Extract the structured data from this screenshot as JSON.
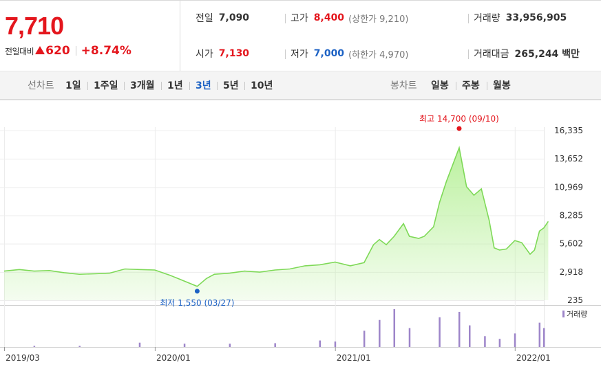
{
  "quote": {
    "price": "7,710",
    "change_label": "전일대비",
    "change_value": "620",
    "change_pct": "+8.74%",
    "prev_close_label": "전일",
    "prev_close": "7,090",
    "open_label": "시가",
    "open": "7,130",
    "high_label": "고가",
    "high": "8,400",
    "upper_limit": "(상한가 9,210)",
    "low_label": "저가",
    "low": "7,000",
    "lower_limit": "(하한가 4,970)",
    "volume_label": "거래량",
    "volume": "33,956,905",
    "amount_label": "거래대금",
    "amount": "265,244 백만",
    "colors": {
      "up": "#e4161d",
      "down": "#1d62c4"
    }
  },
  "toolbar": {
    "line_chart_label": "선차트",
    "periods": [
      "1일",
      "1주일",
      "3개월",
      "1년",
      "3년",
      "5년",
      "10년"
    ],
    "active_period": "3년",
    "candle_chart_label": "봉차트",
    "candle_periods": [
      "일봉",
      "주봉",
      "월봉"
    ]
  },
  "chart_data": {
    "type": "area",
    "y_ticks": [
      "16,335",
      "13,652",
      "10,969",
      "8,285",
      "5,602",
      "2,918",
      "235"
    ],
    "ylim": [
      235,
      16335
    ],
    "x_ticks": [
      "2019/03",
      "2020/01",
      "2021/01",
      "2022/01"
    ],
    "x_range": [
      "2019-03",
      "2022-03"
    ],
    "max_annotation": "최고 14,700 (09/10)",
    "min_annotation": "최저 1,550 (03/27)",
    "volume_legend": "거래량",
    "colors": {
      "line": "#7ed957",
      "fill": "#b8f09a",
      "max_marker": "#e4161d",
      "min_marker": "#1d62c4",
      "volume": "#9d85c9"
    },
    "series": [
      {
        "values": [
          [
            "2019-03-01",
            3000
          ],
          [
            "2019-04-01",
            3150
          ],
          [
            "2019-05-01",
            3000
          ],
          [
            "2019-06-01",
            3050
          ],
          [
            "2019-07-01",
            2850
          ],
          [
            "2019-08-01",
            2700
          ],
          [
            "2019-09-01",
            2750
          ],
          [
            "2019-10-01",
            2800
          ],
          [
            "2019-11-01",
            3200
          ],
          [
            "2019-12-01",
            3150
          ],
          [
            "2020-01-01",
            3100
          ],
          [
            "2020-02-01",
            2600
          ],
          [
            "2020-03-27",
            1550
          ],
          [
            "2020-04-15",
            2300
          ],
          [
            "2020-05-01",
            2700
          ],
          [
            "2020-06-01",
            2800
          ],
          [
            "2020-07-01",
            3000
          ],
          [
            "2020-08-01",
            2900
          ],
          [
            "2020-09-01",
            3100
          ],
          [
            "2020-10-01",
            3200
          ],
          [
            "2020-11-01",
            3500
          ],
          [
            "2020-12-01",
            3600
          ],
          [
            "2021-01-01",
            3850
          ],
          [
            "2021-02-01",
            3500
          ],
          [
            "2021-03-01",
            3800
          ],
          [
            "2021-03-20",
            5500
          ],
          [
            "2021-04-01",
            6000
          ],
          [
            "2021-04-15",
            5500
          ],
          [
            "2021-05-01",
            6300
          ],
          [
            "2021-05-20",
            7500
          ],
          [
            "2021-06-01",
            6300
          ],
          [
            "2021-06-20",
            6100
          ],
          [
            "2021-07-01",
            6300
          ],
          [
            "2021-07-20",
            7200
          ],
          [
            "2021-08-01",
            9500
          ],
          [
            "2021-08-15",
            11500
          ],
          [
            "2021-09-10",
            14700
          ],
          [
            "2021-09-25",
            11000
          ],
          [
            "2021-10-10",
            10200
          ],
          [
            "2021-10-25",
            10800
          ],
          [
            "2021-11-10",
            7800
          ],
          [
            "2021-11-20",
            5200
          ],
          [
            "2021-12-01",
            5000
          ],
          [
            "2021-12-15",
            5100
          ],
          [
            "2022-01-01",
            5900
          ],
          [
            "2022-01-15",
            5700
          ],
          [
            "2022-02-01",
            4600
          ],
          [
            "2022-02-10",
            5000
          ],
          [
            "2022-02-20",
            6800
          ],
          [
            "2022-03-01",
            7100
          ],
          [
            "2022-03-10",
            7710
          ]
        ]
      }
    ],
    "volume": {
      "dates": [
        "2019-05-01",
        "2019-08-01",
        "2019-12-01",
        "2020-03-01",
        "2020-06-01",
        "2020-09-01",
        "2020-12-01",
        "2021-01-01",
        "2021-03-01",
        "2021-04-01",
        "2021-05-01",
        "2021-06-01",
        "2021-08-01",
        "2021-09-10",
        "2021-10-01",
        "2021-11-01",
        "2021-12-01",
        "2022-01-01",
        "2022-02-20",
        "2022-03-01"
      ],
      "values": [
        2,
        2,
        8,
        6,
        6,
        7,
        12,
        10,
        30,
        50,
        70,
        35,
        55,
        65,
        40,
        20,
        15,
        25,
        45,
        35
      ]
    }
  }
}
